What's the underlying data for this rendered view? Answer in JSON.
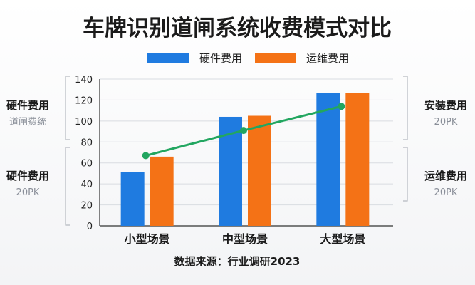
{
  "chart_data": {
    "type": "bar",
    "title": "车牌识别道闸系统收费模式对比",
    "categories": [
      "小型场景",
      "中型场景",
      "大型场景"
    ],
    "series": [
      {
        "name": "硬件费用",
        "values": [
          51,
          104,
          127
        ],
        "color": "#1f7be0"
      },
      {
        "name": "运维费用",
        "values": [
          66,
          105,
          127
        ],
        "color": "#f47216"
      }
    ],
    "line": {
      "values": [
        67,
        91,
        114
      ],
      "color": "#22a660"
    },
    "ylim": [
      0,
      140
    ],
    "yticks": [
      0,
      20,
      40,
      60,
      80,
      100,
      120,
      140
    ],
    "grid": true,
    "legend": "top",
    "source": "数据来源：行业调研2023"
  },
  "side_labels": {
    "left_top": {
      "main": "硬件费用",
      "sub": "道闸费统"
    },
    "left_bottom": {
      "main": "硬件费用",
      "sub": "20PK"
    },
    "right_top": {
      "main": "安装费用",
      "sub": "20PK"
    },
    "right_bottom": {
      "main": "运维费用",
      "sub": "20PK"
    }
  }
}
